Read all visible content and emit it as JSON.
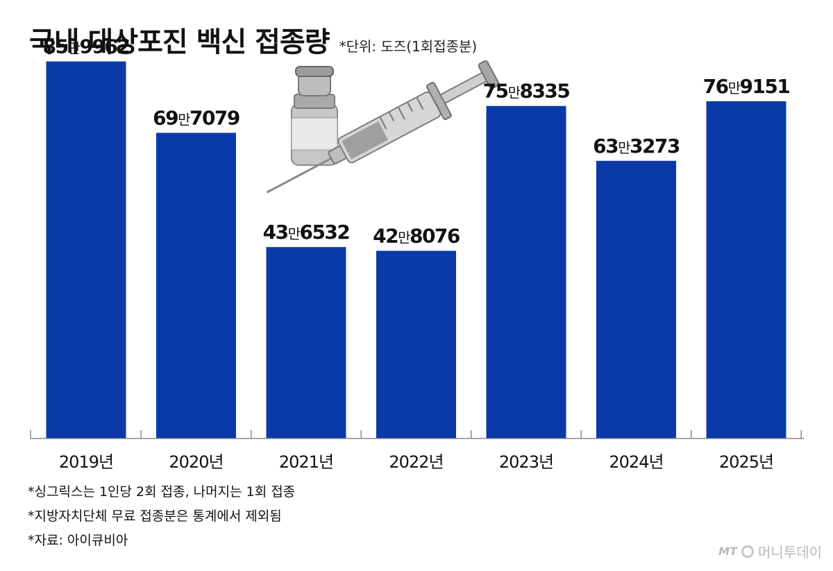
{
  "header": {
    "title": "국내 대상포진 백신 접종량",
    "unit": "*단위: 도즈(1회접종분)"
  },
  "chart_data": {
    "type": "bar",
    "categories": [
      "2019년",
      "2020년",
      "2021년",
      "2022년",
      "2023년",
      "2024년",
      "2025년"
    ],
    "values": [
      859962,
      697079,
      436532,
      428076,
      758335,
      633273,
      769151
    ],
    "value_labels": [
      {
        "man": "85",
        "unit": "만",
        "rest": "9962"
      },
      {
        "man": "69",
        "unit": "만",
        "rest": "7079"
      },
      {
        "man": "43",
        "unit": "만",
        "rest": "6532"
      },
      {
        "man": "42",
        "unit": "만",
        "rest": "8076"
      },
      {
        "man": "75",
        "unit": "만",
        "rest": "8335"
      },
      {
        "man": "63",
        "unit": "만",
        "rest": "3273"
      },
      {
        "man": "76",
        "unit": "만",
        "rest": "9151"
      }
    ],
    "ylim": [
      0,
      1000000
    ],
    "bar_color": "#0a3aaa",
    "grid": false,
    "legend": "none"
  },
  "notes": [
    "*싱그릭스는 1인당 2회 접종, 나머지는 1회 접종",
    "*지방자치단체 무료 접종분은 통계에서 제외됨",
    "*자료: 아이큐비아"
  ],
  "brand": {
    "mark": "MT",
    "name": "머니투데이"
  },
  "illustration_icons": [
    "vaccine-vial-icon",
    "syringe-icon"
  ]
}
